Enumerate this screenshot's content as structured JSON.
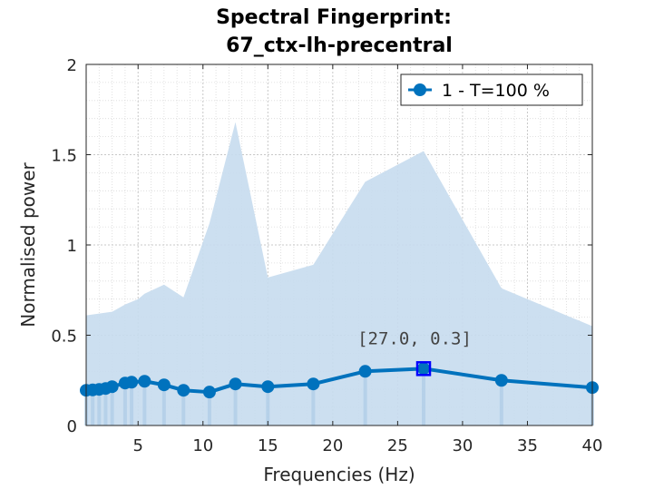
{
  "chart_data": {
    "type": "line",
    "title_line1": "Spectral Fingerprint:",
    "title_line2": "67_ctx-lh-precentral",
    "xlabel": "Frequencies (Hz)",
    "ylabel": "Normalised power",
    "xlim": [
      1,
      40
    ],
    "ylim": [
      0,
      2
    ],
    "xticks": [
      5,
      10,
      15,
      20,
      25,
      30,
      35,
      40
    ],
    "xtick_labels": [
      "5",
      "10",
      "15",
      "20",
      "25",
      "30",
      "35",
      "40"
    ],
    "yticks": [
      0,
      0.5,
      1,
      1.5,
      2
    ],
    "ytick_labels": [
      "0",
      "0.5",
      "1",
      "1.5",
      "2"
    ],
    "grid": true,
    "minor_grid": true,
    "legend_position": "top-right",
    "series": [
      {
        "name": "1 - T=100 %",
        "color": "#0072BD",
        "x": [
          1.0,
          1.5,
          2.0,
          2.5,
          3.0,
          4.0,
          4.5,
          5.5,
          7.0,
          8.5,
          10.5,
          12.5,
          15.0,
          18.5,
          22.5,
          27.0,
          33.0,
          40.0
        ],
        "y": [
          0.195,
          0.197,
          0.2,
          0.205,
          0.215,
          0.235,
          0.24,
          0.245,
          0.225,
          0.195,
          0.185,
          0.23,
          0.215,
          0.23,
          0.3,
          0.315,
          0.25,
          0.21
        ]
      }
    ],
    "band": {
      "color": "#c6dcee",
      "x": [
        1.0,
        2.0,
        3.0,
        4.0,
        5.0,
        5.5,
        7.0,
        8.5,
        10.5,
        12.5,
        15.0,
        18.5,
        22.5,
        27.0,
        33.0,
        40.0
      ],
      "upper": [
        0.61,
        0.62,
        0.63,
        0.67,
        0.7,
        0.73,
        0.78,
        0.71,
        1.12,
        1.68,
        0.82,
        0.89,
        1.35,
        1.52,
        0.76,
        0.55
      ],
      "lower": [
        0,
        0,
        0,
        0,
        0,
        0,
        0,
        0,
        0,
        0,
        0,
        0,
        0,
        0,
        0,
        0
      ]
    },
    "highlight": {
      "x": 27.0,
      "y": 0.315,
      "label": "[27.0, 0.3]"
    }
  }
}
